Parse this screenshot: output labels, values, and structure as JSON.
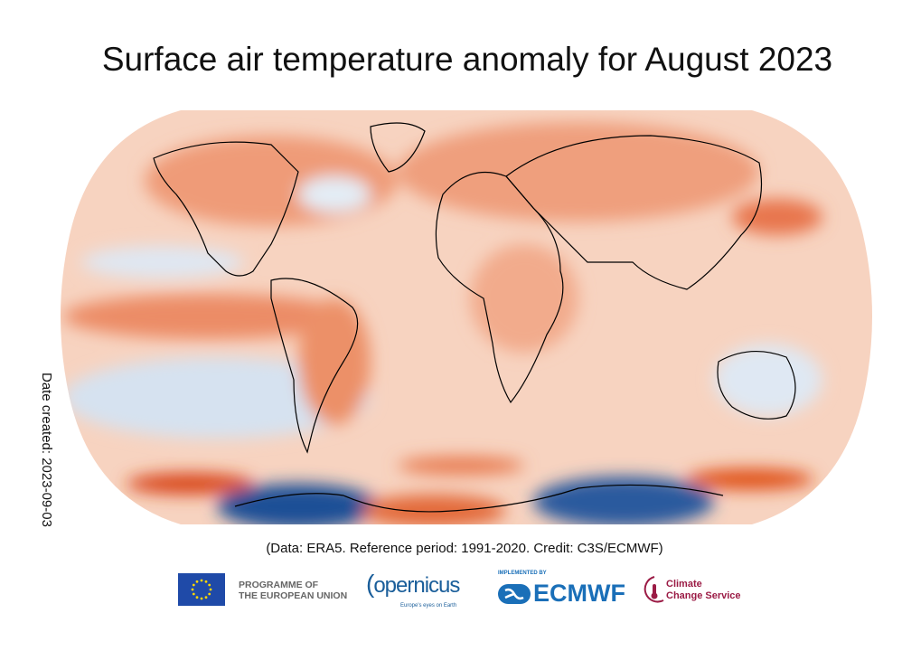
{
  "title": "Surface air temperature anomaly for August 2023",
  "date_created": "Date created: 2023-09-03",
  "credit": "(Data: ERA5.  Reference period: 1991-2020.  Credit: C3S/ECMWF)",
  "map": {
    "projection": "Robinson",
    "variable": "Surface air temperature anomaly",
    "colors": {
      "warm": "#e8734a",
      "mild_warm": "#f6c3a9",
      "neutral": "#f7f0ee",
      "cool": "#c9d9ec",
      "cold": "#1f4f96"
    }
  },
  "logos": {
    "eu": "PROGRAMME OF THE EUROPEAN UNION",
    "eu_line1": "PROGRAMME OF",
    "eu_line2": "THE EUROPEAN UNION",
    "copernicus": "opernicus",
    "copernicus_full": "Copernicus",
    "copernicus_tagline": "Europe's eyes on Earth",
    "implemented_by": "IMPLEMENTED BY",
    "ecmwf": "ECMWF",
    "ccs_line1": "Climate",
    "ccs_line2": "Change Service"
  }
}
